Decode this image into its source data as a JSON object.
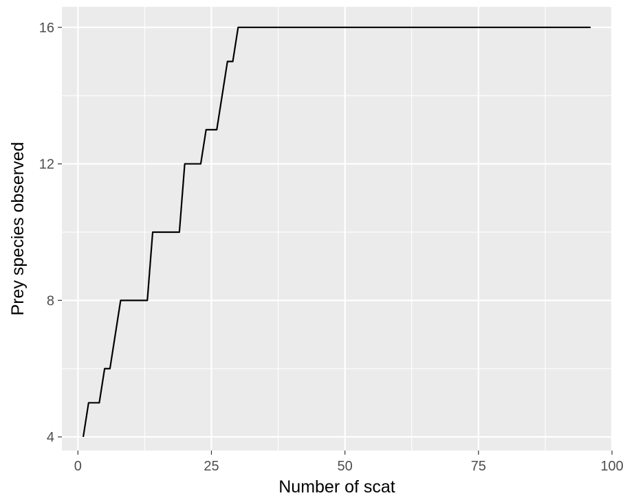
{
  "chart_data": {
    "type": "line",
    "title": "",
    "xlabel": "Number of scat",
    "ylabel": "Prey species observed",
    "xlim": [
      -3,
      100
    ],
    "ylim": [
      3.6,
      16.6
    ],
    "grid": true,
    "legend": "none",
    "x_ticks": [
      0,
      25,
      50,
      75,
      100
    ],
    "x_tick_labels": [
      "0",
      "25",
      "50",
      "75",
      "100"
    ],
    "y_ticks": [
      4,
      8,
      12,
      16
    ],
    "y_tick_labels": [
      "4",
      "8",
      "12",
      "16"
    ],
    "series": [
      {
        "x": [
          1,
          2,
          4,
          5,
          6,
          8,
          13,
          14,
          19,
          20,
          23,
          24,
          26,
          28,
          29,
          30,
          96
        ],
        "y": [
          4,
          5,
          5,
          6,
          6,
          8,
          8,
          10,
          10,
          12,
          12,
          13,
          13,
          15,
          15,
          16,
          16
        ]
      }
    ],
    "colors": {
      "panel_background": "#ebebeb",
      "grid": "#ffffff",
      "line": "#000000",
      "tick_text": "#4d4d4d",
      "tick_mark": "#333333"
    }
  }
}
